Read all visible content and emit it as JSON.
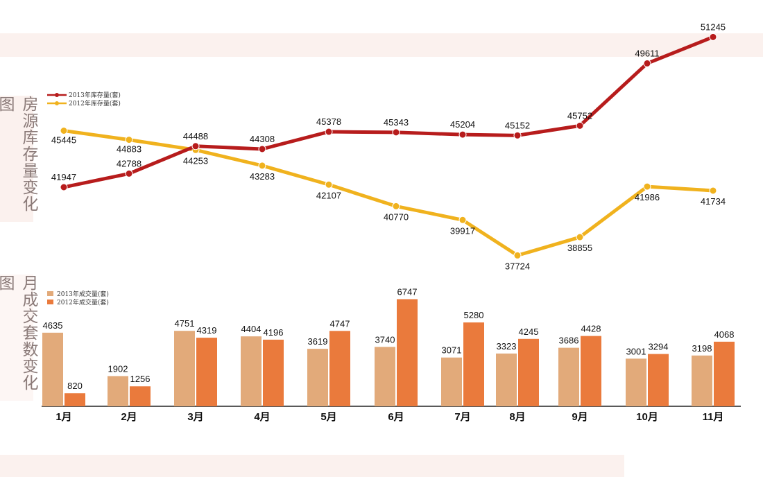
{
  "side_labels": {
    "line_chart": "房源库存量变化图",
    "bar_chart": "月成交套数变化图"
  },
  "colors": {
    "line_2013": "#b71c1c",
    "line_2012": "#f0b21e",
    "bar_2013": "#e2aa7a",
    "bar_2012": "#ea7a3c",
    "band": "#fbf1ee"
  },
  "chart_data": [
    {
      "type": "line",
      "categories": [
        "1月",
        "2月",
        "3月",
        "4月",
        "5月",
        "6月",
        "7月",
        "8月",
        "9月",
        "10月",
        "11月"
      ],
      "series": [
        {
          "name": "2013年库存量(套)",
          "values": [
            41947,
            42788,
            44488,
            44308,
            45378,
            45343,
            45204,
            45152,
            45752,
            49611,
            51245
          ]
        },
        {
          "name": "2012年库存量(套)",
          "values": [
            45445,
            44883,
            44253,
            43283,
            42107,
            40770,
            39917,
            37724,
            38855,
            41986,
            41734
          ]
        }
      ],
      "legend_position": "top-left",
      "grid": false
    },
    {
      "type": "bar",
      "categories": [
        "1月",
        "2月",
        "3月",
        "4月",
        "5月",
        "6月",
        "7月",
        "8月",
        "9月",
        "10月",
        "11月"
      ],
      "series": [
        {
          "name": "2013年成交量(套)",
          "values": [
            4635,
            1902,
            4751,
            4404,
            3619,
            3740,
            3071,
            3323,
            3686,
            3001,
            3198
          ]
        },
        {
          "name": "2012年成交量(套)",
          "values": [
            820,
            1256,
            4319,
            4196,
            4747,
            6747,
            5280,
            4245,
            4428,
            3294,
            4068
          ]
        }
      ],
      "legend_position": "top-left",
      "grid": false
    }
  ]
}
